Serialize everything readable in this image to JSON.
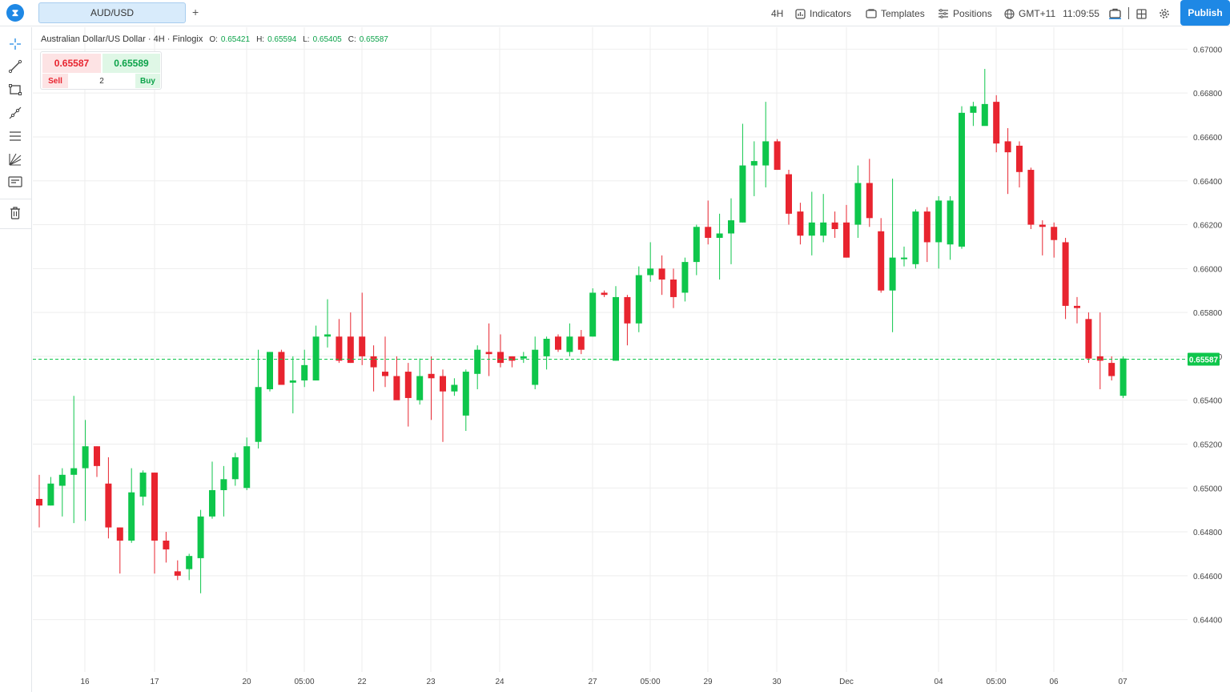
{
  "header": {
    "logo_glyph": "⧗",
    "symbol_tab": "AUD/USD",
    "add_tab": "+",
    "timeframe": "4H",
    "indicators": "Indicators",
    "templates": "Templates",
    "positions": "Positions",
    "timezone": "GMT+11",
    "clock": "11:09:55",
    "publish": "Publish"
  },
  "left_toolbar": {
    "tools": [
      "crosshair-icon",
      "trend-line-icon",
      "rectangle-icon",
      "ray-icon",
      "parallel-channel-icon",
      "fib-fan-icon",
      "text-note-icon",
      "trash-icon"
    ]
  },
  "legend": {
    "symbol": "Australian Dollar/US Dollar · 4H · Finlogix",
    "o_label": "O:",
    "o_value": "0.65421",
    "h_label": "H:",
    "h_value": "0.65594",
    "l_label": "L:",
    "l_value": "0.65405",
    "c_label": "C:",
    "c_value": "0.65587"
  },
  "trade_panel": {
    "sell_price": "0.65587",
    "buy_price": "0.65589",
    "sell_label": "Sell",
    "quantity": "2",
    "buy_label": "Buy"
  },
  "colors": {
    "up": "#0ec64b",
    "down": "#e8242f",
    "grid": "#eeeeee",
    "accent": "#1e88e5"
  },
  "chart_data": {
    "type": "candlestick",
    "symbol": "AUD/USD",
    "timeframe": "4H",
    "ylim": [
      0.643,
      0.671
    ],
    "y_ticks": [
      "0.67000",
      "0.66800",
      "0.66600",
      "0.66400",
      "0.66200",
      "0.66000",
      "0.65800",
      "0.65600",
      "0.65400",
      "0.65200",
      "0.65000",
      "0.64800",
      "0.64600",
      "0.64400"
    ],
    "x_ticks": [
      "16",
      "17",
      "20",
      "05:00",
      "22",
      "23",
      "24",
      "27",
      "05:00",
      "29",
      "30",
      "Dec",
      "04",
      "05:00",
      "06",
      "07"
    ],
    "current_price": "0.65587",
    "candles": [
      [
        0.6495,
        0.6492,
        0.6506,
        0.6482
      ],
      [
        0.6492,
        0.6502,
        0.6505,
        0.6492
      ],
      [
        0.6501,
        0.6506,
        0.6509,
        0.6487
      ],
      [
        0.6506,
        0.6509,
        0.6542,
        0.6484
      ],
      [
        0.6509,
        0.6519,
        0.6531,
        0.6485
      ],
      [
        0.6519,
        0.651,
        0.6519,
        0.6505
      ],
      [
        0.6502,
        0.6482,
        0.6514,
        0.6477
      ],
      [
        0.6482,
        0.6476,
        0.6482,
        0.6461
      ],
      [
        0.6476,
        0.6498,
        0.6509,
        0.6475
      ],
      [
        0.6496,
        0.6507,
        0.6508,
        0.6492
      ],
      [
        0.6507,
        0.6476,
        0.6507,
        0.6461
      ],
      [
        0.6476,
        0.6472,
        0.648,
        0.6466
      ],
      [
        0.6462,
        0.646,
        0.6467,
        0.6458
      ],
      [
        0.6463,
        0.6469,
        0.647,
        0.6458
      ],
      [
        0.6468,
        0.6487,
        0.649,
        0.6452
      ],
      [
        0.6487,
        0.6499,
        0.6512,
        0.6486
      ],
      [
        0.6499,
        0.6504,
        0.651,
        0.6487
      ],
      [
        0.6504,
        0.6514,
        0.6516,
        0.6501
      ],
      [
        0.65,
        0.6519,
        0.6523,
        0.6499
      ],
      [
        0.6521,
        0.6546,
        0.6563,
        0.6518
      ],
      [
        0.6545,
        0.6562,
        0.6562,
        0.6544
      ],
      [
        0.6562,
        0.6547,
        0.6563,
        0.6547
      ],
      [
        0.6548,
        0.6549,
        0.656,
        0.6534
      ],
      [
        0.6549,
        0.6556,
        0.6563,
        0.6546
      ],
      [
        0.6549,
        0.6569,
        0.6574,
        0.6549
      ],
      [
        0.6569,
        0.657,
        0.6586,
        0.6564
      ],
      [
        0.6569,
        0.6558,
        0.6577,
        0.6557
      ],
      [
        0.6569,
        0.6557,
        0.658,
        0.6557
      ],
      [
        0.6569,
        0.656,
        0.6589,
        0.6556
      ],
      [
        0.656,
        0.6555,
        0.6565,
        0.6544
      ],
      [
        0.6553,
        0.6551,
        0.6569,
        0.6546
      ],
      [
        0.6551,
        0.654,
        0.656,
        0.6541
      ],
      [
        0.6553,
        0.6541,
        0.6557,
        0.6528
      ],
      [
        0.654,
        0.6551,
        0.6559,
        0.6538
      ],
      [
        0.6552,
        0.655,
        0.656,
        0.6531
      ],
      [
        0.6551,
        0.6544,
        0.6554,
        0.6521
      ],
      [
        0.6544,
        0.6547,
        0.655,
        0.6542
      ],
      [
        0.6533,
        0.6553,
        0.6554,
        0.6526
      ],
      [
        0.6552,
        0.6563,
        0.6565,
        0.6545
      ],
      [
        0.6562,
        0.6561,
        0.6575,
        0.6551
      ],
      [
        0.6562,
        0.6557,
        0.657,
        0.6555
      ],
      [
        0.656,
        0.6558,
        0.656,
        0.6555
      ],
      [
        0.6559,
        0.656,
        0.6562,
        0.6557
      ],
      [
        0.6547,
        0.6563,
        0.6569,
        0.6545
      ],
      [
        0.656,
        0.6568,
        0.6569,
        0.6554
      ],
      [
        0.6569,
        0.6563,
        0.657,
        0.6562
      ],
      [
        0.6562,
        0.6569,
        0.6575,
        0.656
      ],
      [
        0.6569,
        0.6563,
        0.6572,
        0.6561
      ],
      [
        0.6569,
        0.6589,
        0.6591,
        0.6569
      ],
      [
        0.6589,
        0.6588,
        0.659,
        0.6587
      ],
      [
        0.6558,
        0.6587,
        0.6592,
        0.6558
      ],
      [
        0.6587,
        0.6575,
        0.6588,
        0.6565
      ],
      [
        0.6575,
        0.6597,
        0.6601,
        0.6571
      ],
      [
        0.6597,
        0.66,
        0.6612,
        0.6594
      ],
      [
        0.66,
        0.6595,
        0.6606,
        0.6588
      ],
      [
        0.6595,
        0.6587,
        0.66,
        0.6582
      ],
      [
        0.6589,
        0.6603,
        0.6605,
        0.6585
      ],
      [
        0.6603,
        0.6619,
        0.662,
        0.6597
      ],
      [
        0.6619,
        0.6614,
        0.6631,
        0.6611
      ],
      [
        0.6614,
        0.6616,
        0.6625,
        0.6595
      ],
      [
        0.6616,
        0.6622,
        0.6632,
        0.6602
      ],
      [
        0.6621,
        0.6647,
        0.6666,
        0.6621
      ],
      [
        0.6647,
        0.6649,
        0.6658,
        0.6633
      ],
      [
        0.6647,
        0.6658,
        0.6676,
        0.6637
      ],
      [
        0.6658,
        0.6645,
        0.6659,
        0.6645
      ],
      [
        0.6643,
        0.6625,
        0.6645,
        0.662
      ],
      [
        0.6626,
        0.6615,
        0.663,
        0.6611
      ],
      [
        0.6615,
        0.6621,
        0.6635,
        0.6606
      ],
      [
        0.6615,
        0.6621,
        0.6634,
        0.6612
      ],
      [
        0.6621,
        0.6618,
        0.6626,
        0.6614
      ],
      [
        0.6621,
        0.6605,
        0.6629,
        0.6605
      ],
      [
        0.662,
        0.6639,
        0.6647,
        0.6614
      ],
      [
        0.6639,
        0.6623,
        0.665,
        0.6619
      ],
      [
        0.6617,
        0.659,
        0.6623,
        0.6589
      ],
      [
        0.659,
        0.6605,
        0.6641,
        0.6571
      ],
      [
        0.6605,
        0.6605,
        0.661,
        0.6601
      ],
      [
        0.6602,
        0.6626,
        0.6627,
        0.66
      ],
      [
        0.6626,
        0.6612,
        0.6628,
        0.6603
      ],
      [
        0.6612,
        0.6631,
        0.6633,
        0.66
      ],
      [
        0.6611,
        0.6631,
        0.6633,
        0.6604
      ],
      [
        0.661,
        0.6671,
        0.6674,
        0.6609
      ],
      [
        0.6671,
        0.6674,
        0.6676,
        0.6665
      ],
      [
        0.6665,
        0.6675,
        0.6691,
        0.6666
      ],
      [
        0.6676,
        0.6657,
        0.6679,
        0.6653
      ],
      [
        0.6658,
        0.6653,
        0.6664,
        0.6634
      ],
      [
        0.6656,
        0.6644,
        0.6658,
        0.6637
      ],
      [
        0.6645,
        0.662,
        0.6646,
        0.6618
      ],
      [
        0.662,
        0.6619,
        0.6622,
        0.6606
      ],
      [
        0.6619,
        0.6613,
        0.6621,
        0.6605
      ],
      [
        0.6612,
        0.6583,
        0.6614,
        0.6577
      ],
      [
        0.6583,
        0.6582,
        0.6587,
        0.6575
      ],
      [
        0.6577,
        0.6559,
        0.658,
        0.6557
      ],
      [
        0.656,
        0.6558,
        0.658,
        0.6545
      ],
      [
        0.6557,
        0.6551,
        0.656,
        0.6549
      ],
      [
        0.6542,
        0.6559,
        0.656,
        0.6541
      ]
    ]
  }
}
